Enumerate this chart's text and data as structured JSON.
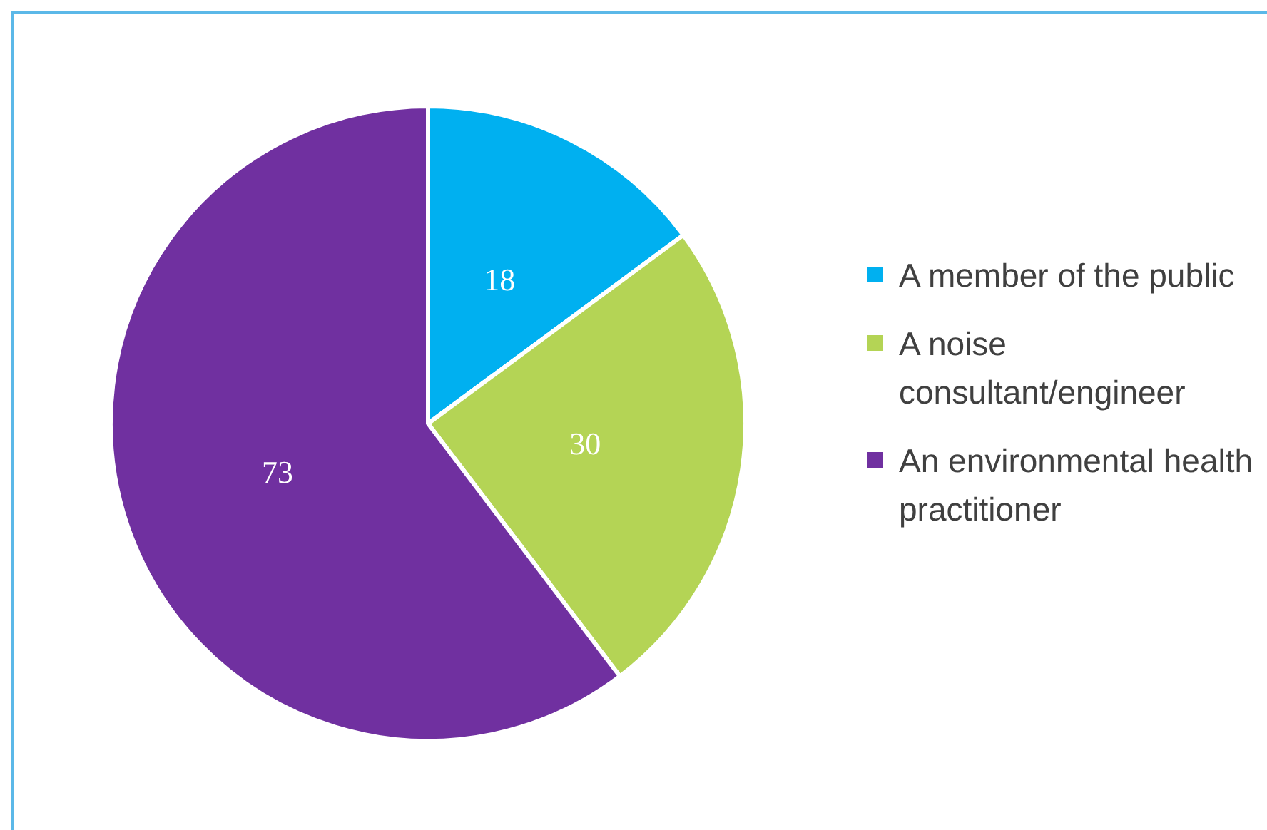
{
  "chart_data": {
    "type": "pie",
    "categories": [
      "A member of the public",
      "A noise consultant/engineer",
      "An environmental health practitioner"
    ],
    "values": [
      18,
      30,
      73
    ],
    "colors": [
      "#00b0f0",
      "#b4d455",
      "#7030a0"
    ],
    "data_labels": true,
    "legend": "right"
  }
}
